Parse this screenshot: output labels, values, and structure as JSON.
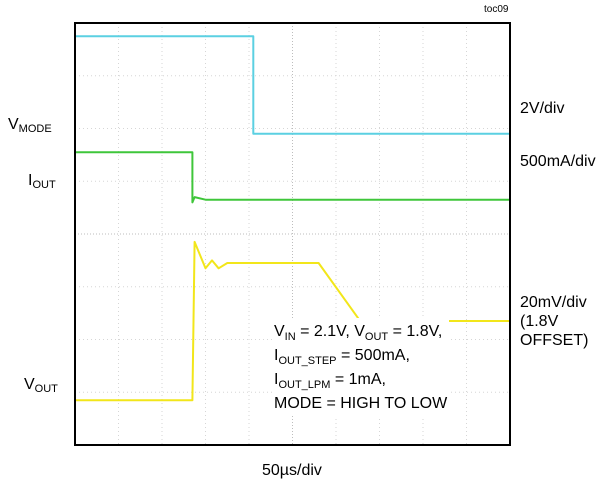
{
  "figure_tag": "toc09",
  "chart_data": {
    "type": "line",
    "xlabel": "50µs/div",
    "divisions": {
      "x": 10,
      "y": 8
    },
    "grid": true,
    "channels": [
      {
        "name_main": "V",
        "name_sub": "MODE",
        "scale": "2V/div",
        "color": "#5bd0e2",
        "points": [
          [
            0,
            7.75
          ],
          [
            4.1,
            7.75
          ],
          [
            4.1,
            5.9
          ],
          [
            10,
            5.9
          ]
        ]
      },
      {
        "name_main": "I",
        "name_sub": "OUT",
        "scale": "500mA/div",
        "color": "#3fc63a",
        "points": [
          [
            0,
            5.55
          ],
          [
            2.7,
            5.55
          ],
          [
            2.7,
            4.6
          ],
          [
            2.75,
            4.7
          ],
          [
            3.0,
            4.65
          ],
          [
            10,
            4.65
          ]
        ]
      },
      {
        "name_main": "V",
        "name_sub": "OUT",
        "scale_lines": [
          "20mV/div",
          "(1.8V",
          "OFFSET)"
        ],
        "color": "#f2e61a",
        "points": [
          [
            0,
            0.85
          ],
          [
            2.7,
            0.85
          ],
          [
            2.75,
            3.85
          ],
          [
            3.0,
            3.35
          ],
          [
            3.15,
            3.5
          ],
          [
            3.3,
            3.35
          ],
          [
            3.5,
            3.45
          ],
          [
            5.6,
            3.45
          ],
          [
            6.6,
            2.3
          ],
          [
            7.0,
            2.35
          ],
          [
            10,
            2.35
          ]
        ]
      }
    ],
    "conditions": [
      [
        {
          "t": "V"
        },
        {
          "s": "IN"
        },
        {
          "t": " = 2.1V, V"
        },
        {
          "s": "OUT"
        },
        {
          "t": " = 1.8V,"
        }
      ],
      [
        {
          "t": "I"
        },
        {
          "s": "OUT_STEP"
        },
        {
          "t": " = 500mA,"
        }
      ],
      [
        {
          "t": "I"
        },
        {
          "s": "OUT_LPM"
        },
        {
          "t": " = 1mA,"
        }
      ],
      [
        {
          "t": "MODE = HIGH TO LOW"
        }
      ]
    ]
  }
}
